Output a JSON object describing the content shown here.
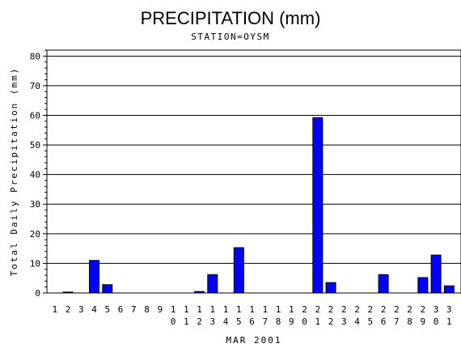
{
  "chart_data": {
    "type": "bar",
    "title": "PRECIPITATION (mm)",
    "subtitle": "STATION=OYSM",
    "xlabel": "MAR 2001",
    "ylabel": "Total Daily Precipitation (mm)",
    "ylim": [
      0,
      82
    ],
    "yticks": [
      0,
      10,
      20,
      30,
      40,
      50,
      60,
      70,
      80
    ],
    "grid": true,
    "bar_color": "#0000ff",
    "categories": [
      "1",
      "2",
      "3",
      "4",
      "5",
      "6",
      "7",
      "8",
      "9",
      "10",
      "11",
      "12",
      "13",
      "14",
      "15",
      "16",
      "17",
      "18",
      "19",
      "20",
      "21",
      "22",
      "23",
      "24",
      "25",
      "26",
      "27",
      "28",
      "29",
      "30",
      "31"
    ],
    "values": [
      0,
      0.3,
      0,
      11,
      2.8,
      0,
      0,
      0,
      0,
      0,
      0,
      0.5,
      6.2,
      0,
      15.3,
      0,
      0,
      0,
      0,
      0,
      59.2,
      3.5,
      0,
      0,
      0,
      6.2,
      0,
      0,
      5.2,
      12.8,
      2.4
    ]
  }
}
